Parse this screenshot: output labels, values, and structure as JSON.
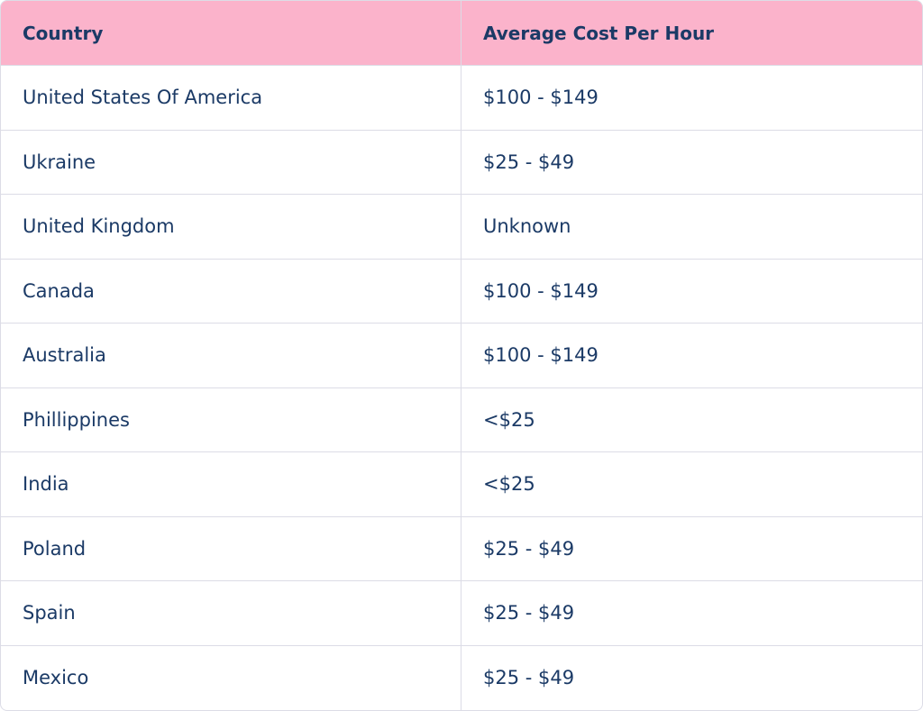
{
  "table": {
    "header": [
      "Country",
      "Average Cost Per Hour"
    ],
    "rows": [
      [
        "United States Of America",
        "$100 - $149"
      ],
      [
        "Ukraine",
        "$25 - $49"
      ],
      [
        "United Kingdom",
        "Unknown"
      ],
      [
        "Canada",
        "$100 - $149"
      ],
      [
        "Australia",
        "$100 - $149"
      ],
      [
        "Phillippines",
        "<$25"
      ],
      [
        "India",
        "<$25"
      ],
      [
        "Poland",
        "$25 - $49"
      ],
      [
        "Spain",
        "$25 - $49"
      ],
      [
        "Mexico",
        "$25 - $49"
      ]
    ]
  }
}
